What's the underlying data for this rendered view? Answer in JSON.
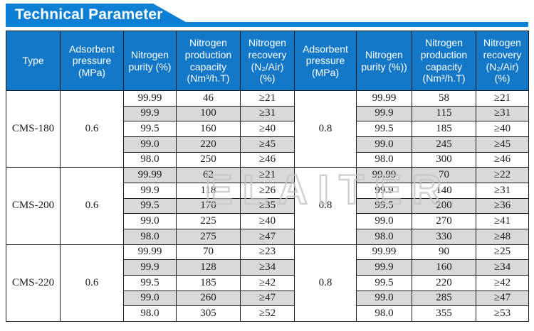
{
  "banner": {
    "title": "Technical Parameter"
  },
  "watermark": {
    "text": "ELAITER"
  },
  "colors": {
    "banner_bg": "#0d80d6",
    "banner_text": "#ffffff",
    "header_bg": "#1478c8",
    "header_text": "#ffffff",
    "row_alt": "#d9d9d9",
    "border": "#1a1a1a",
    "watermark": "#c6c6c6"
  },
  "table": {
    "headers": [
      "Type",
      "Adsorbent pressure (MPa)",
      "Nitrogen purity (%)",
      "Nitrogen production capacity (Nm³/h.T)",
      "Nitrogen recovery (N₂/Air) (%)",
      "Adsorbent pressure (MPa)",
      "Nitrogen purity (%))",
      "Nitrogen production capacity (Nm³/h.T)",
      "Nitrogen recovery (N₂/Air) (%)"
    ],
    "blocks": [
      {
        "type": "CMS-180",
        "pressure_06": "0.6",
        "pressure_08": "0.8",
        "rows": [
          {
            "purity_06": "99.99",
            "capacity_06": "46",
            "recovery_06": "≥21",
            "purity_08": "99.99",
            "capacity_08": "58",
            "recovery_08": "≥21"
          },
          {
            "purity_06": "99.9",
            "capacity_06": "100",
            "recovery_06": "≥31",
            "purity_08": "99.9",
            "capacity_08": "115",
            "recovery_08": "≥31"
          },
          {
            "purity_06": "99.5",
            "capacity_06": "160",
            "recovery_06": "≥40",
            "purity_08": "99.5",
            "capacity_08": "185",
            "recovery_08": "≥40"
          },
          {
            "purity_06": "99.0",
            "capacity_06": "220",
            "recovery_06": "≥45",
            "purity_08": "99.0",
            "capacity_08": "245",
            "recovery_08": "≥45"
          },
          {
            "purity_06": "98.0",
            "capacity_06": "250",
            "recovery_06": "≥46",
            "purity_08": "98.0",
            "capacity_08": "300",
            "recovery_08": "≥46"
          }
        ]
      },
      {
        "type": "CMS-200",
        "pressure_06": "0.6",
        "pressure_08": "0.8",
        "rows": [
          {
            "purity_06": "99.99",
            "capacity_06": "62",
            "recovery_06": "≥21",
            "purity_08": "99.99",
            "capacity_08": "70",
            "recovery_08": "≥22"
          },
          {
            "purity_06": "99.9",
            "capacity_06": "118",
            "recovery_06": "≥26",
            "purity_08": "99.9",
            "capacity_08": "140",
            "recovery_08": "≥31"
          },
          {
            "purity_06": "99.5",
            "capacity_06": "170",
            "recovery_06": "≥35",
            "purity_08": "99.5",
            "capacity_08": "200",
            "recovery_08": "≥36"
          },
          {
            "purity_06": "99.0",
            "capacity_06": "225",
            "recovery_06": "≥40",
            "purity_08": "99.0",
            "capacity_08": "270",
            "recovery_08": "≥41"
          },
          {
            "purity_06": "98.0",
            "capacity_06": "275",
            "recovery_06": "≥47",
            "purity_08": "98.0",
            "capacity_08": "330",
            "recovery_08": "≥48"
          }
        ]
      },
      {
        "type": "CMS-220",
        "pressure_06": "0.6",
        "pressure_08": "0.8",
        "rows": [
          {
            "purity_06": "99.99",
            "capacity_06": "70",
            "recovery_06": "≥23",
            "purity_08": "99.99",
            "capacity_08": "90",
            "recovery_08": "≥25"
          },
          {
            "purity_06": "99.9",
            "capacity_06": "128",
            "recovery_06": "≥34",
            "purity_08": "99.9",
            "capacity_08": "160",
            "recovery_08": "≥34"
          },
          {
            "purity_06": "99.5",
            "capacity_06": "185",
            "recovery_06": "≥42",
            "purity_08": "99.5",
            "capacity_08": "220",
            "recovery_08": "≥42"
          },
          {
            "purity_06": "99.0",
            "capacity_06": "260",
            "recovery_06": "≥47",
            "purity_08": "99.0",
            "capacity_08": "285",
            "recovery_08": "≥47"
          },
          {
            "purity_06": "98.0",
            "capacity_06": "305",
            "recovery_06": "≥52",
            "purity_08": "98.0",
            "capacity_08": "355",
            "recovery_08": "≥53"
          }
        ]
      }
    ]
  }
}
